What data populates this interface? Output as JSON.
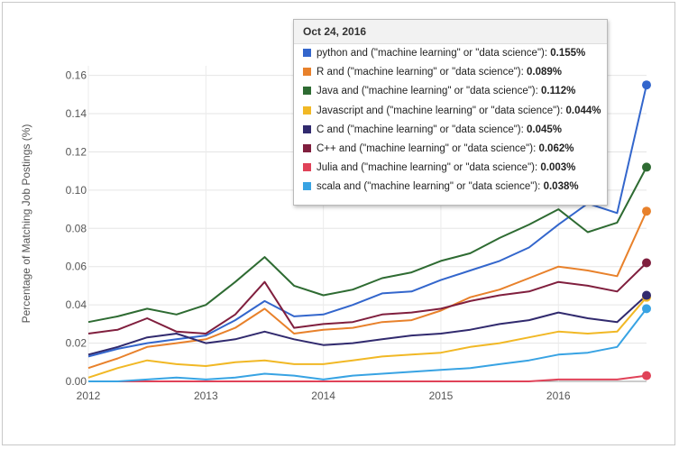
{
  "chart_data": {
    "type": "line",
    "title": "",
    "xlabel": "",
    "ylabel": "Percentage of Matching Job Postings (%)",
    "x_ticks": [
      "2012",
      "2013",
      "2014",
      "2015",
      "2016"
    ],
    "y_ticks": [
      "0.00",
      "0.02",
      "0.04",
      "0.06",
      "0.08",
      "0.10",
      "0.12",
      "0.14",
      "0.16"
    ],
    "xlim": [
      "2012-01",
      "2016-10"
    ],
    "ylim": [
      0,
      0.165
    ],
    "grid": true,
    "legend": "none",
    "x": [
      "2012-01",
      "2012-04",
      "2012-07",
      "2012-10",
      "2013-01",
      "2013-04",
      "2013-07",
      "2013-10",
      "2014-01",
      "2014-04",
      "2014-07",
      "2014-10",
      "2015-01",
      "2015-04",
      "2015-07",
      "2015-10",
      "2016-01",
      "2016-04",
      "2016-07",
      "2016-10"
    ],
    "series": [
      {
        "name": "python",
        "color": "#3366cc",
        "values": [
          0.013,
          0.017,
          0.02,
          0.022,
          0.024,
          0.032,
          0.042,
          0.034,
          0.035,
          0.04,
          0.046,
          0.047,
          0.053,
          0.058,
          0.063,
          0.07,
          0.082,
          0.093,
          0.088,
          0.155
        ]
      },
      {
        "name": "R",
        "color": "#e8812b",
        "values": [
          0.007,
          0.012,
          0.018,
          0.02,
          0.022,
          0.028,
          0.038,
          0.025,
          0.027,
          0.028,
          0.031,
          0.032,
          0.037,
          0.044,
          0.048,
          0.054,
          0.06,
          0.058,
          0.055,
          0.089
        ]
      },
      {
        "name": "Java",
        "color": "#2e6b32",
        "values": [
          0.031,
          0.034,
          0.038,
          0.035,
          0.04,
          0.052,
          0.065,
          0.05,
          0.045,
          0.048,
          0.054,
          0.057,
          0.063,
          0.067,
          0.075,
          0.082,
          0.09,
          0.078,
          0.083,
          0.112
        ]
      },
      {
        "name": "Javascript",
        "color": "#f1b825",
        "values": [
          0.002,
          0.007,
          0.011,
          0.009,
          0.008,
          0.01,
          0.011,
          0.009,
          0.009,
          0.011,
          0.013,
          0.014,
          0.015,
          0.018,
          0.02,
          0.023,
          0.026,
          0.025,
          0.026,
          0.044
        ]
      },
      {
        "name": "C",
        "color": "#312a6e",
        "values": [
          0.014,
          0.018,
          0.023,
          0.025,
          0.02,
          0.022,
          0.026,
          0.022,
          0.019,
          0.02,
          0.022,
          0.024,
          0.025,
          0.027,
          0.03,
          0.032,
          0.036,
          0.033,
          0.031,
          0.045
        ]
      },
      {
        "name": "C++",
        "color": "#801f3e",
        "values": [
          0.025,
          0.027,
          0.033,
          0.026,
          0.025,
          0.035,
          0.052,
          0.028,
          0.03,
          0.031,
          0.035,
          0.036,
          0.038,
          0.042,
          0.045,
          0.047,
          0.052,
          0.05,
          0.047,
          0.062
        ]
      },
      {
        "name": "Julia",
        "color": "#e04258",
        "values": [
          0.0,
          0.0,
          0.0,
          0.0,
          0.0,
          0.0,
          0.0,
          0.0,
          0.0,
          0.0,
          0.0,
          0.0,
          0.0,
          0.0,
          0.0,
          0.0,
          0.001,
          0.001,
          0.001,
          0.003
        ]
      },
      {
        "name": "scala",
        "color": "#38a3e3",
        "values": [
          0.0,
          0.0,
          0.001,
          0.002,
          0.001,
          0.002,
          0.004,
          0.003,
          0.001,
          0.003,
          0.004,
          0.005,
          0.006,
          0.007,
          0.009,
          0.011,
          0.014,
          0.015,
          0.018,
          0.038
        ]
      }
    ]
  },
  "tooltip": {
    "date": "Oct 24, 2016",
    "rows": [
      {
        "label": "python and (\"machine learning\" or \"data science\"):",
        "value": "0.155%",
        "color": "#3366cc"
      },
      {
        "label": "R and (\"machine learning\" or \"data science\"):",
        "value": "0.089%",
        "color": "#e8812b"
      },
      {
        "label": "Java and (\"machine learning\" or \"data science\"):",
        "value": "0.112%",
        "color": "#2e6b32"
      },
      {
        "label": "Javascript and (\"machine learning\" or \"data science\"):",
        "value": "0.044%",
        "color": "#f1b825"
      },
      {
        "label": "C and (\"machine learning\" or \"data science\"):",
        "value": "0.045%",
        "color": "#312a6e"
      },
      {
        "label": "C++ and (\"machine learning\" or \"data science\"):",
        "value": "0.062%",
        "color": "#801f3e"
      },
      {
        "label": "Julia and (\"machine learning\" or \"data science\"):",
        "value": "0.003%",
        "color": "#e04258"
      },
      {
        "label": "scala and (\"machine learning\" or \"data science\"):",
        "value": "0.038%",
        "color": "#38a3e3"
      }
    ]
  }
}
